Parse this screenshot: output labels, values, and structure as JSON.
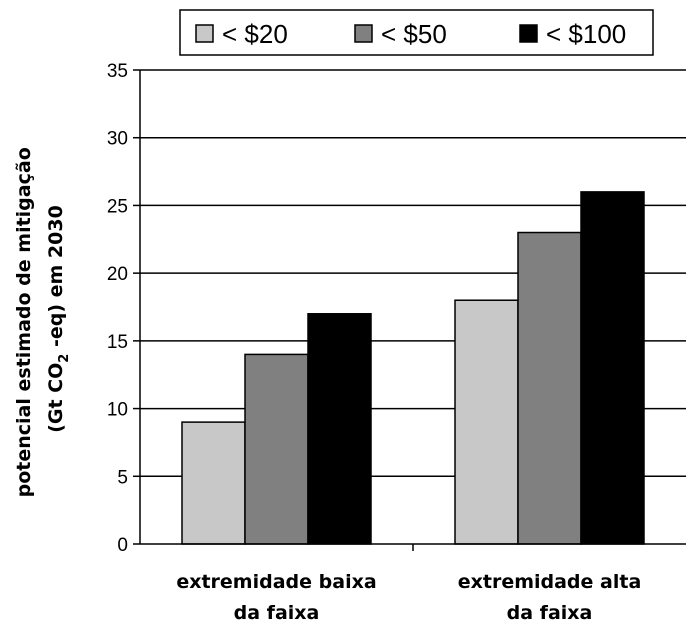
{
  "chart_data": {
    "type": "bar",
    "categories": [
      [
        "extremidade baixa",
        "da faixa"
      ],
      [
        "extremidade alta",
        "da faixa"
      ]
    ],
    "series": [
      {
        "name": "< $20",
        "values": [
          9,
          18
        ],
        "color": "#c8c8c8"
      },
      {
        "name": "< $50",
        "values": [
          14,
          23
        ],
        "color": "#808080"
      },
      {
        "name": "< $100",
        "values": [
          17,
          26
        ],
        "color": "#000000"
      }
    ],
    "ylabel": {
      "line1": "potencial estimado de mitigação",
      "line2_pre": "(Gt CO",
      "line2_sub": "2",
      "line2_post": " -eq) em 2030"
    },
    "ylim": [
      0,
      35
    ],
    "yticks": [
      0,
      5,
      10,
      15,
      20,
      25,
      30,
      35
    ],
    "grid": true,
    "legend_position": "top"
  }
}
